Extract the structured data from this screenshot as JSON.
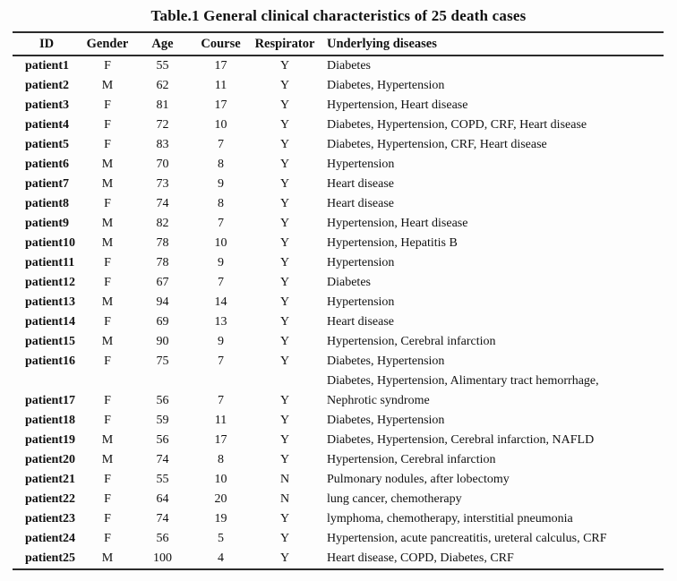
{
  "table": {
    "title": "Table.1 General clinical characteristics of 25 death cases",
    "columns": [
      "ID",
      "Gender",
      "Age",
      "Course",
      "Respirator",
      "Underlying diseases"
    ],
    "rows": [
      {
        "cells": [
          "patient1",
          "F",
          "55",
          "17",
          "Y",
          "Diabetes"
        ]
      },
      {
        "cells": [
          "patient2",
          "M",
          "62",
          "11",
          "Y",
          "Diabetes, Hypertension"
        ]
      },
      {
        "cells": [
          "patient3",
          "F",
          "81",
          "17",
          "Y",
          "Hypertension, Heart disease"
        ]
      },
      {
        "cells": [
          "patient4",
          "F",
          "72",
          "10",
          "Y",
          "Diabetes, Hypertension, COPD, CRF, Heart disease"
        ]
      },
      {
        "cells": [
          "patient5",
          "F",
          "83",
          "7",
          "Y",
          "Diabetes, Hypertension, CRF, Heart disease"
        ]
      },
      {
        "cells": [
          "patient6",
          "M",
          "70",
          "8",
          "Y",
          "Hypertension"
        ]
      },
      {
        "cells": [
          "patient7",
          "M",
          "73",
          "9",
          "Y",
          "Heart disease"
        ]
      },
      {
        "cells": [
          "patient8",
          "F",
          "74",
          "8",
          "Y",
          "Heart disease"
        ]
      },
      {
        "cells": [
          "patient9",
          "M",
          "82",
          "7",
          "Y",
          "Hypertension, Heart disease"
        ]
      },
      {
        "cells": [
          "patient10",
          "M",
          "78",
          "10",
          "Y",
          "Hypertension, Hepatitis B"
        ]
      },
      {
        "cells": [
          "patient11",
          "F",
          "78",
          "9",
          "Y",
          "Hypertension"
        ]
      },
      {
        "cells": [
          "patient12",
          "F",
          "67",
          "7",
          "Y",
          "Diabetes"
        ]
      },
      {
        "cells": [
          "patient13",
          "M",
          "94",
          "14",
          "Y",
          "Hypertension"
        ]
      },
      {
        "cells": [
          "patient14",
          "F",
          "69",
          "13",
          "Y",
          "Heart disease"
        ]
      },
      {
        "cells": [
          "patient15",
          "M",
          "90",
          "9",
          "Y",
          "Hypertension, Cerebral infarction"
        ]
      },
      {
        "cells": [
          "patient16",
          "F",
          "75",
          "7",
          "Y",
          "Diabetes, Hypertension"
        ]
      },
      {
        "cells": [
          "",
          "",
          "",
          "",
          "",
          "Diabetes, Hypertension, Alimentary tract hemorrhage,"
        ]
      },
      {
        "cells": [
          "patient17",
          "F",
          "56",
          "7",
          "Y",
          "Nephrotic syndrome"
        ]
      },
      {
        "cells": [
          "patient18",
          "F",
          "59",
          "11",
          "Y",
          "Diabetes, Hypertension"
        ]
      },
      {
        "cells": [
          "patient19",
          "M",
          "56",
          "17",
          "Y",
          "Diabetes, Hypertension, Cerebral infarction, NAFLD"
        ]
      },
      {
        "cells": [
          "patient20",
          "M",
          "74",
          "8",
          "Y",
          "Hypertension, Cerebral infarction"
        ]
      },
      {
        "cells": [
          "patient21",
          "F",
          "55",
          "10",
          "N",
          "Pulmonary nodules, after lobectomy"
        ]
      },
      {
        "cells": [
          "patient22",
          "F",
          "64",
          "20",
          "N",
          "lung cancer, chemotherapy"
        ]
      },
      {
        "cells": [
          "patient23",
          "F",
          "74",
          "19",
          "Y",
          "lymphoma, chemotherapy, interstitial pneumonia"
        ]
      },
      {
        "cells": [
          "patient24",
          "F",
          "56",
          "5",
          "Y",
          "Hypertension, acute pancreatitis, ureteral calculus, CRF"
        ]
      },
      {
        "cells": [
          "patient25",
          "M",
          "100",
          "4",
          "Y",
          "Heart disease, COPD, Diabetes, CRF"
        ]
      }
    ]
  }
}
